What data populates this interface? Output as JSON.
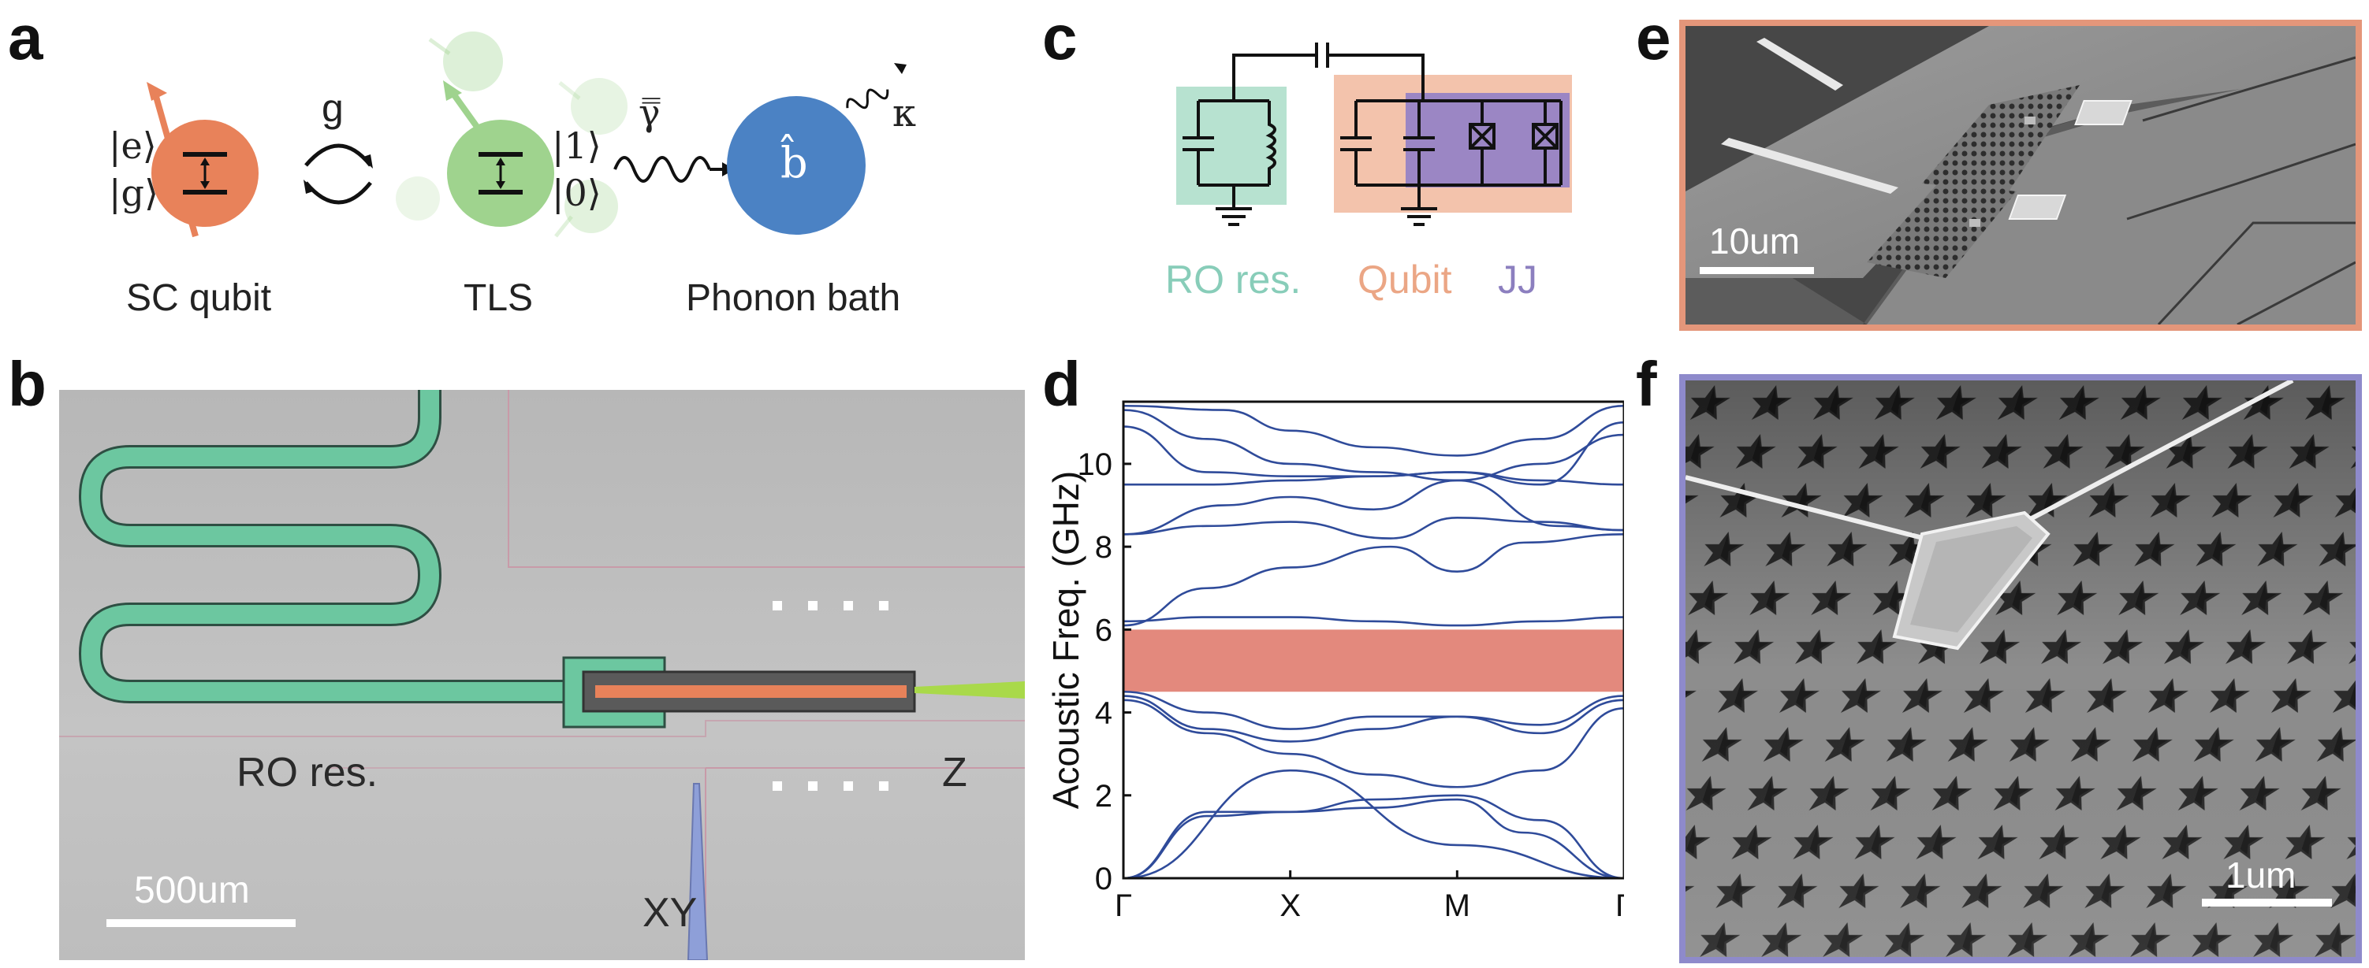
{
  "panels": {
    "a": {
      "letter": "a",
      "qubit_state_e": "|e⟩",
      "qubit_state_g": "|g⟩",
      "coupling_label": "g",
      "tls_state_1": "|1⟩",
      "tls_state_0": "|0⟩",
      "decay_label": "γ̿",
      "bath_operator": "b̂",
      "bath_loss_label": "κ",
      "captions": [
        "SC qubit",
        "TLS",
        "Phonon bath"
      ],
      "colors": {
        "qubit": "#E8825A",
        "tls": "#9FD38E",
        "bath": "#4B82C4"
      }
    },
    "b": {
      "letter": "b",
      "ro_label": "RO res.",
      "z_label": "Z",
      "xy_label": "XY",
      "scale_label": "500um",
      "colors": {
        "resonator": "#6CC7A0",
        "qubit": "#E8825A",
        "z_line": "#A9D94A",
        "xy_line": "#8E9FD8"
      }
    },
    "c": {
      "letter": "c",
      "legend": [
        {
          "label": "RO res.",
          "color": "#88CDB9"
        },
        {
          "label": "Qubit",
          "color": "#EBA685"
        },
        {
          "label": "JJ",
          "color": "#8C7FBF"
        }
      ],
      "box_colors": {
        "ro": "#B7E2D0",
        "qubit": "#F3C3AC",
        "jj": "#9B86C4"
      }
    },
    "d": {
      "letter": "d",
      "chart_data": {
        "type": "line",
        "title": "",
        "xlabel": "",
        "ylabel": "Acoustic Freq. (GHz)",
        "xticks": [
          "Γ",
          "X",
          "M",
          "Γ"
        ],
        "ylim": [
          0,
          11.5
        ],
        "yticks": [
          0,
          2,
          4,
          6,
          8,
          10
        ],
        "x": [
          0,
          1,
          2,
          3
        ],
        "band_gap": {
          "lower": 4.5,
          "upper": 6.0,
          "color": "#E3897D"
        },
        "line_color": "#2F4B9A",
        "series": [
          {
            "values": [
              [
                0,
                0
              ],
              [
                1,
                2.6
              ],
              [
                2,
                0.8
              ],
              [
                3,
                0
              ]
            ]
          },
          {
            "values": [
              [
                0,
                0
              ],
              [
                0.5,
                1.5
              ],
              [
                1,
                1.6
              ],
              [
                1.5,
                1.9
              ],
              [
                2,
                2.0
              ],
              [
                2.5,
                1.4
              ],
              [
                3,
                0
              ]
            ]
          },
          {
            "values": [
              [
                0,
                0
              ],
              [
                0.5,
                1.6
              ],
              [
                1,
                1.6
              ],
              [
                1.5,
                1.7
              ],
              [
                2,
                1.9
              ],
              [
                2.4,
                1.1
              ],
              [
                3,
                0
              ]
            ]
          },
          {
            "values": [
              [
                0,
                4.3
              ],
              [
                0.5,
                3.5
              ],
              [
                1,
                3.0
              ],
              [
                1.5,
                2.5
              ],
              [
                2,
                2.2
              ],
              [
                2.5,
                2.6
              ],
              [
                3,
                4.1
              ]
            ]
          },
          {
            "values": [
              [
                0,
                4.4
              ],
              [
                0.5,
                3.6
              ],
              [
                1,
                3.3
              ],
              [
                1.5,
                3.6
              ],
              [
                2,
                3.9
              ],
              [
                2.5,
                3.5
              ],
              [
                3,
                4.3
              ]
            ]
          },
          {
            "values": [
              [
                0,
                4.5
              ],
              [
                0.5,
                4.0
              ],
              [
                1,
                3.6
              ],
              [
                1.5,
                3.9
              ],
              [
                2,
                3.9
              ],
              [
                2.5,
                3.7
              ],
              [
                3,
                4.4
              ]
            ]
          },
          {
            "values": [
              [
                0,
                6.1
              ],
              [
                0.5,
                7.0
              ],
              [
                1,
                7.5
              ],
              [
                1.6,
                8.0
              ],
              [
                2,
                7.4
              ],
              [
                2.4,
                8.1
              ],
              [
                3,
                8.3
              ]
            ]
          },
          {
            "values": [
              [
                0,
                6.2
              ],
              [
                0.5,
                6.3
              ],
              [
                1,
                6.3
              ],
              [
                1.5,
                6.2
              ],
              [
                2,
                6.1
              ],
              [
                2.5,
                6.2
              ],
              [
                3,
                6.3
              ]
            ]
          },
          {
            "values": [
              [
                0,
                8.3
              ],
              [
                0.5,
                8.5
              ],
              [
                1,
                8.6
              ],
              [
                1.6,
                8.2
              ],
              [
                2,
                8.7
              ],
              [
                2.5,
                8.6
              ],
              [
                3,
                8.4
              ]
            ]
          },
          {
            "values": [
              [
                0,
                8.3
              ],
              [
                0.6,
                9.0
              ],
              [
                1,
                9.2
              ],
              [
                1.5,
                8.9
              ],
              [
                2,
                9.6
              ],
              [
                2.6,
                8.5
              ],
              [
                3,
                8.4
              ]
            ]
          },
          {
            "values": [
              [
                0,
                9.5
              ],
              [
                0.5,
                9.5
              ],
              [
                1,
                9.6
              ],
              [
                1.5,
                9.7
              ],
              [
                2,
                9.8
              ],
              [
                2.5,
                9.6
              ],
              [
                3,
                9.5
              ]
            ]
          },
          {
            "values": [
              [
                0,
                10.9
              ],
              [
                0.5,
                9.8
              ],
              [
                1,
                9.7
              ],
              [
                1.5,
                9.7
              ],
              [
                2,
                9.8
              ],
              [
                2.5,
                9.5
              ],
              [
                3,
                11.0
              ]
            ]
          },
          {
            "values": [
              [
                0,
                11.3
              ],
              [
                0.5,
                10.6
              ],
              [
                1,
                10.0
              ],
              [
                1.5,
                9.8
              ],
              [
                2,
                9.6
              ],
              [
                2.5,
                10.0
              ],
              [
                3,
                10.7
              ]
            ]
          },
          {
            "values": [
              [
                0,
                11.4
              ],
              [
                0.6,
                11.3
              ],
              [
                1,
                10.8
              ],
              [
                1.5,
                10.4
              ],
              [
                2,
                10.2
              ],
              [
                2.5,
                10.6
              ],
              [
                3,
                11.4
              ]
            ]
          }
        ]
      }
    },
    "e": {
      "letter": "e",
      "scale_label": "10um",
      "frame_color": "#E4967A"
    },
    "f": {
      "letter": "f",
      "scale_label": "1um",
      "frame_color": "#8E8ACB"
    }
  }
}
